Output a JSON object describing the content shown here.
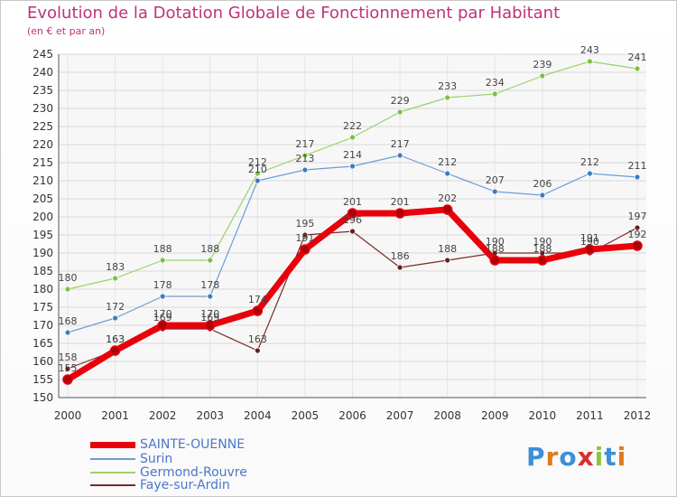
{
  "header": {
    "title": "Evolution de la Dotation Globale de Fonctionnement par Habitant",
    "subtitle": "(en € et par an)"
  },
  "logo": {
    "text": "Proxiti",
    "colors": [
      "#3d8fd6",
      "#e07a1c",
      "#3d8fd6",
      "#d7302c",
      "#8cc63f",
      "#3d8fd6",
      "#e07a1c"
    ]
  },
  "chart_data": {
    "type": "line",
    "x": [
      2000,
      2001,
      2002,
      2003,
      2004,
      2005,
      2006,
      2007,
      2008,
      2009,
      2010,
      2011,
      2012
    ],
    "ylim": [
      150,
      245
    ],
    "ytick_step": 5,
    "grid": true,
    "legend_position": "bottom-left",
    "series": [
      {
        "name": "SAINTE-OUENNE",
        "color": "#e8000b",
        "width": 7,
        "marker_color": "#b00009",
        "label_color": "#444444",
        "values": [
          155,
          163,
          170,
          170,
          174,
          191,
          201,
          201,
          202,
          188,
          188,
          191,
          192
        ]
      },
      {
        "name": "Surin",
        "color": "#6b9dd6",
        "width": 1.2,
        "marker_color": "#3f7bbf",
        "label_color": "#444444",
        "values": [
          168,
          172,
          178,
          178,
          210,
          213,
          214,
          217,
          212,
          207,
          206,
          212,
          211
        ]
      },
      {
        "name": "Germond-Rouvre",
        "color": "#9ad26a",
        "width": 1.2,
        "marker_color": "#7ac043",
        "label_color": "#444444",
        "values": [
          180,
          183,
          188,
          188,
          212,
          217,
          222,
          229,
          233,
          234,
          239,
          243,
          241
        ]
      },
      {
        "name": "Faye-sur-Ardin",
        "color": "#7a2a2a",
        "width": 1.2,
        "marker_color": "#6a1f1f",
        "label_color": "#444444",
        "values": [
          158,
          163,
          169,
          169,
          163,
          195,
          196,
          186,
          188,
          190,
          190,
          190,
          197
        ]
      }
    ]
  }
}
